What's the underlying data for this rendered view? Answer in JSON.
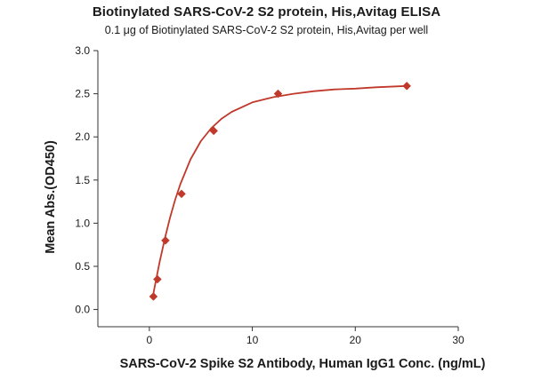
{
  "chart_data": {
    "type": "scatter",
    "title": "Biotinylated SARS-CoV-2 S2 protein, His,Avitag ELISA",
    "subtitle": "0.1 μg of Biotinylated SARS-CoV-2 S2 protein, His,Avitag per well",
    "xlabel": "SARS-CoV-2 Spike S2 Antibody, Human IgG1 Conc. (ng/mL)",
    "ylabel": "Mean Abs.(OD450)",
    "xlim": [
      -5,
      30
    ],
    "ylim": [
      -0.2,
      3.0
    ],
    "xticks": [
      0,
      10,
      20,
      30
    ],
    "yticks": [
      0.0,
      0.5,
      1.0,
      1.5,
      2.0,
      2.5,
      3.0
    ],
    "ytick_labels": [
      "0.0",
      "0.5",
      "1.0",
      "1.5",
      "2.0",
      "2.5",
      "3.0"
    ],
    "grid": false,
    "legend": "none",
    "series": [
      {
        "marker": "diamond",
        "color": "#c0392b",
        "x": [
          0.39,
          0.78,
          1.56,
          3.125,
          6.25,
          12.5,
          25
        ],
        "y": [
          0.15,
          0.35,
          0.8,
          1.34,
          2.07,
          2.5,
          2.59
        ]
      }
    ],
    "fit_curve": {
      "color": "#c0392b",
      "x": [
        0.3,
        0.5,
        0.75,
        1,
        1.5,
        2,
        2.5,
        3,
        4,
        5,
        6,
        7,
        8,
        10,
        12,
        14,
        16,
        18,
        20,
        22,
        25
      ],
      "y": [
        0.12,
        0.25,
        0.4,
        0.55,
        0.82,
        1.06,
        1.27,
        1.45,
        1.74,
        1.95,
        2.1,
        2.21,
        2.29,
        2.4,
        2.46,
        2.5,
        2.53,
        2.55,
        2.56,
        2.575,
        2.59
      ]
    }
  }
}
